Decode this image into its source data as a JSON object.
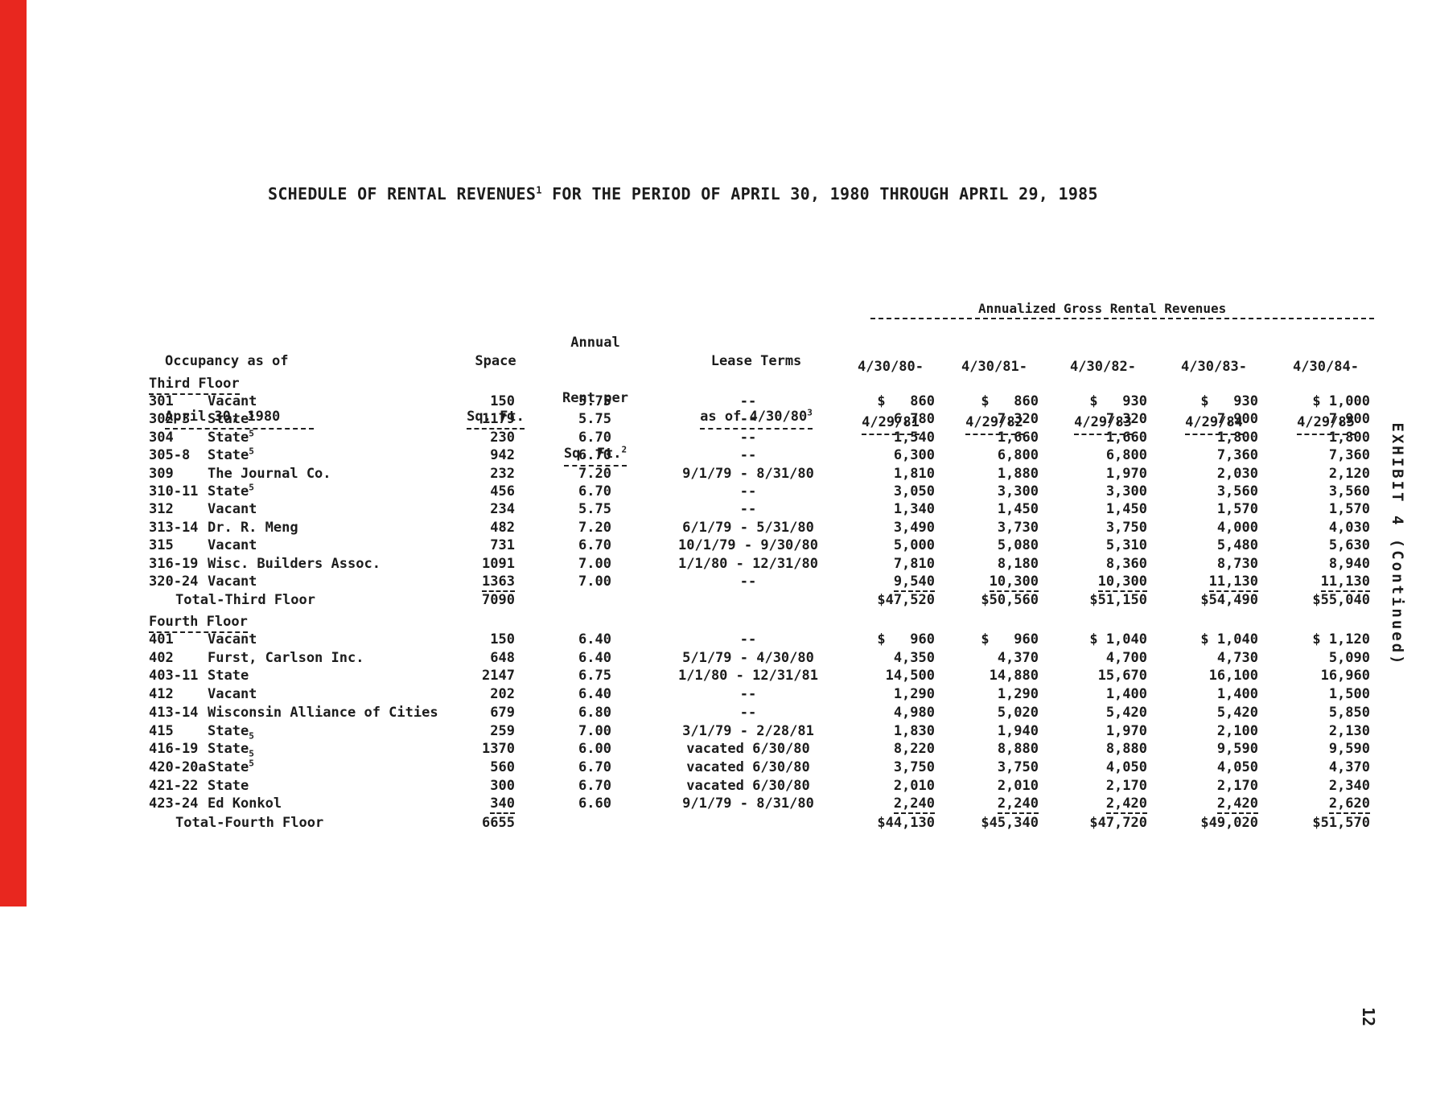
{
  "document": {
    "title": {
      "pre": "SCHEDULE OF RENTAL REVENUES",
      "sup": "1",
      "post": " FOR THE PERIOD OF APRIL 30, 1980 THROUGH APRIL 29, 1985"
    },
    "exhibit": "EXHIBIT 4 (Continued)",
    "page_number": "12",
    "accent_bar_color": "#e8271f"
  },
  "table": {
    "headers": {
      "occupancy": [
        "Occupancy as of",
        "April 30, 1980"
      ],
      "space": [
        "Space",
        "Sq. Ft."
      ],
      "annual": "Annual",
      "rent": [
        "Rent per",
        "Sq. Ft."
      ],
      "rent_sup": "2",
      "lease": [
        "Lease Terms",
        "as of 4/30/80"
      ],
      "lease_sup": "3",
      "revenues_group": "Annualized Gross Rental Revenues",
      "periods": [
        [
          "4/30/80-",
          "4/29/81"
        ],
        [
          "4/30/81-",
          "4/29/82"
        ],
        [
          "4/30/82-",
          "4/29/83"
        ],
        [
          "4/30/83-",
          "4/29/84"
        ],
        [
          "4/30/84-",
          "4/29/85"
        ]
      ]
    },
    "sections": [
      {
        "heading": "Third Floor",
        "rows": [
          {
            "room": "301",
            "tenant": "Vacant",
            "note": "",
            "note_pos": "",
            "space": "150",
            "rent": "5.75",
            "lease": "--",
            "rev": [
              "$   860",
              "$   860",
              "$   930",
              "$   930",
              "$ 1,000"
            ]
          },
          {
            "room": "302-3",
            "tenant": "State",
            "note": "5",
            "note_pos": "sup",
            "space": "1179",
            "rent": "5.75",
            "lease": "--",
            "rev": [
              "6,780",
              "7,320",
              "7,320",
              "7,900",
              "7,900"
            ]
          },
          {
            "room": "304",
            "tenant": "State",
            "note": "5",
            "note_pos": "sup",
            "space": "230",
            "rent": "6.70",
            "lease": "--",
            "rev": [
              "1,540",
              "1,660",
              "1,660",
              "1,800",
              "1,800"
            ]
          },
          {
            "room": "305-8",
            "tenant": "State",
            "note": "5",
            "note_pos": "sup",
            "space": "942",
            "rent": "6.70",
            "lease": "--",
            "rev": [
              "6,300",
              "6,800",
              "6,800",
              "7,360",
              "7,360"
            ]
          },
          {
            "room": "309",
            "tenant": "The Journal Co.",
            "note": "",
            "note_pos": "",
            "space": "232",
            "rent": "7.20",
            "lease": "9/1/79 - 8/31/80",
            "rev": [
              "1,810",
              "1,880",
              "1,970",
              "2,030",
              "2,120"
            ]
          },
          {
            "room": "310-11",
            "tenant": "State",
            "note": "5",
            "note_pos": "sup",
            "space": "456",
            "rent": "6.70",
            "lease": "--",
            "rev": [
              "3,050",
              "3,300",
              "3,300",
              "3,560",
              "3,560"
            ]
          },
          {
            "room": "312",
            "tenant": "Vacant",
            "note": "",
            "note_pos": "",
            "space": "234",
            "rent": "5.75",
            "lease": "--",
            "rev": [
              "1,340",
              "1,450",
              "1,450",
              "1,570",
              "1,570"
            ]
          },
          {
            "room": "313-14",
            "tenant": "Dr. R. Meng",
            "note": "",
            "note_pos": "",
            "space": "482",
            "rent": "7.20",
            "lease": "6/1/79 - 5/31/80",
            "rev": [
              "3,490",
              "3,730",
              "3,750",
              "4,000",
              "4,030"
            ]
          },
          {
            "room": "315",
            "tenant": "Vacant",
            "note": "",
            "note_pos": "",
            "space": "731",
            "rent": "6.70",
            "lease": "10/1/79 - 9/30/80",
            "rev": [
              "5,000",
              "5,080",
              "5,310",
              "5,480",
              "5,630"
            ]
          },
          {
            "room": "316-19",
            "tenant": "Wisc. Builders Assoc.",
            "note": "",
            "note_pos": "",
            "space": "1091",
            "rent": "7.00",
            "lease": "1/1/80 - 12/31/80",
            "rev": [
              "7,810",
              "8,180",
              "8,360",
              "8,730",
              "8,940"
            ]
          },
          {
            "room": "320-24",
            "tenant": "Vacant",
            "note": "",
            "note_pos": "",
            "space": "1363",
            "rent": "7.00",
            "lease": "--",
            "rev": [
              "9,540",
              "10,300",
              "10,300",
              "11,130",
              "11,130"
            ]
          }
        ],
        "total": {
          "label": "Total-Third Floor",
          "space": "7090",
          "rev": [
            "$47,520",
            "$50,560",
            "$51,150",
            "$54,490",
            "$55,040"
          ]
        }
      },
      {
        "heading": "Fourth Floor",
        "rows": [
          {
            "room": "401",
            "tenant": "Vacant",
            "note": "",
            "note_pos": "",
            "space": "150",
            "rent": "6.40",
            "lease": "--",
            "rev": [
              "$   960",
              "$   960",
              "$ 1,040",
              "$ 1,040",
              "$ 1,120"
            ]
          },
          {
            "room": "402",
            "tenant": "Furst, Carlson Inc.",
            "note": "",
            "note_pos": "",
            "space": "648",
            "rent": "6.40",
            "lease": "5/1/79 - 4/30/80",
            "rev": [
              "4,350",
              "4,370",
              "4,700",
              "4,730",
              "5,090"
            ]
          },
          {
            "room": "403-11",
            "tenant": "State",
            "note": "",
            "note_pos": "",
            "space": "2147",
            "rent": "6.75",
            "lease": "1/1/80 - 12/31/81",
            "rev": [
              "14,500",
              "14,880",
              "15,670",
              "16,100",
              "16,960"
            ]
          },
          {
            "room": "412",
            "tenant": "Vacant",
            "note": "",
            "note_pos": "",
            "space": "202",
            "rent": "6.40",
            "lease": "--",
            "rev": [
              "1,290",
              "1,290",
              "1,400",
              "1,400",
              "1,500"
            ]
          },
          {
            "room": "413-14",
            "tenant": "Wisconsin Alliance of Cities",
            "note": "",
            "note_pos": "",
            "space": "679",
            "rent": "6.80",
            "lease": "--",
            "rev": [
              "4,980",
              "5,020",
              "5,420",
              "5,420",
              "5,850"
            ]
          },
          {
            "room": "415",
            "tenant": "State",
            "note": "5",
            "note_pos": "sub",
            "space": "259",
            "rent": "7.00",
            "lease": "3/1/79 - 2/28/81",
            "rev": [
              "1,830",
              "1,940",
              "1,970",
              "2,100",
              "2,130"
            ]
          },
          {
            "room": "416-19",
            "tenant": "State",
            "note": "5",
            "note_pos": "sub",
            "space": "1370",
            "rent": "6.00",
            "lease": "vacated 6/30/80",
            "rev": [
              "8,220",
              "8,880",
              "8,880",
              "9,590",
              "9,590"
            ]
          },
          {
            "room": "420-20a",
            "tenant": "State",
            "note": "5",
            "note_pos": "sup",
            "space": "560",
            "rent": "6.70",
            "lease": "vacated 6/30/80",
            "rev": [
              "3,750",
              "3,750",
              "4,050",
              "4,050",
              "4,370"
            ]
          },
          {
            "room": "421-22",
            "tenant": "State",
            "note": "",
            "note_pos": "",
            "space": "300",
            "rent": "6.70",
            "lease": "vacated 6/30/80",
            "rev": [
              "2,010",
              "2,010",
              "2,170",
              "2,170",
              "2,340"
            ]
          },
          {
            "room": "423-24",
            "tenant": "Ed Konkol",
            "note": "",
            "note_pos": "",
            "space": "340",
            "rent": "6.60",
            "lease": "9/1/79 - 8/31/80",
            "rev": [
              "2,240",
              "2,240",
              "2,420",
              "2,420",
              "2,620"
            ]
          }
        ],
        "total": {
          "label": "Total-Fourth Floor",
          "space": "6655",
          "rev": [
            "$44,130",
            "$45,340",
            "$47,720",
            "$49,020",
            "$51,570"
          ]
        }
      }
    ]
  }
}
